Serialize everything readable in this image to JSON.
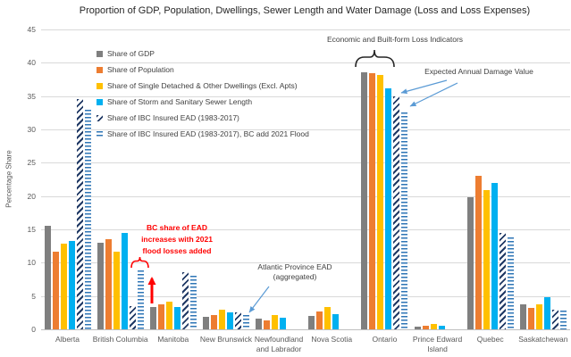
{
  "annotations": {
    "economic": "Economic and Built-form Loss Indicators",
    "expected": "Expected Annual Damage Value",
    "bc_flood_note": "BC share of EAD increases with 2021 flood losses added",
    "atlantic": "Atlantic Province EAD\n(aggregated)"
  },
  "colors": {
    "gdp_gray": "#7F7F7F",
    "population_orange": "#ED7D31",
    "dwellings_yellow": "#FFC000",
    "sewer_blue": "#00B0F0",
    "ead_navy": "#1F3864",
    "ead_bc_blue": "#2E75B6",
    "gridline": "#D9D9D9",
    "annotation_red": "#FF0000",
    "arrow_blue": "#5B9BD5",
    "text_gray": "#595959"
  },
  "chart_data": {
    "type": "bar",
    "title": "Proportion of GDP, Population, Dwellings, Sewer Length and Water Damage (Loss and Loss Expenses)",
    "xlabel": "",
    "ylabel": "Percentage Share",
    "ylim": [
      0,
      45
    ],
    "ytick_step": 5,
    "yticks": [
      0,
      5,
      10,
      15,
      20,
      25,
      30,
      35,
      40,
      45
    ],
    "grid": true,
    "legend_position": "upper-left-inside",
    "categories": [
      "Alberta",
      "British Columbia",
      "Manitoba",
      "New Brunswick",
      "Newfoundland\nand Labrador",
      "Nova Scotia",
      "Ontario",
      "Prince Edward\nIsland",
      "Quebec",
      "Saskatchewan"
    ],
    "series": [
      {
        "name": "Share of GDP",
        "style": "solid",
        "color": "#7F7F7F",
        "values": [
          15.5,
          13.0,
          3.4,
          1.9,
          1.6,
          2.0,
          38.6,
          0.45,
          19.8,
          3.7
        ]
      },
      {
        "name": "Share of Population",
        "style": "solid",
        "color": "#ED7D31",
        "values": [
          11.7,
          13.5,
          3.8,
          2.2,
          1.4,
          2.7,
          38.4,
          0.55,
          23.0,
          3.2
        ]
      },
      {
        "name": "Share of Single Detached & Other Dwellings (Excl. Apts)",
        "style": "solid",
        "color": "#FFC000",
        "values": [
          12.9,
          11.6,
          4.2,
          3.0,
          2.1,
          3.4,
          38.2,
          0.75,
          20.9,
          3.8
        ]
      },
      {
        "name": "Share of Storm and Sanitary Sewer Length",
        "style": "solid",
        "color": "#00B0F0",
        "values": [
          13.3,
          14.4,
          3.3,
          2.5,
          1.8,
          2.3,
          36.2,
          0.6,
          21.9,
          4.8
        ]
      },
      {
        "name": "Share of IBC Insured EAD (1983-2017)",
        "style": "hatch-diagonal",
        "color": "#1F3864",
        "values": [
          34.5,
          3.5,
          8.6,
          2.5,
          null,
          null,
          34.9,
          null,
          14.5,
          3.0
        ]
      },
      {
        "name": "Share of IBC Insured EAD (1983-2017), BC add 2021 Flood",
        "style": "hatch-horizontal",
        "color": "#2E75B6",
        "values": [
          33.0,
          8.9,
          8.1,
          2.1,
          null,
          null,
          32.5,
          null,
          13.8,
          2.8
        ]
      }
    ]
  }
}
